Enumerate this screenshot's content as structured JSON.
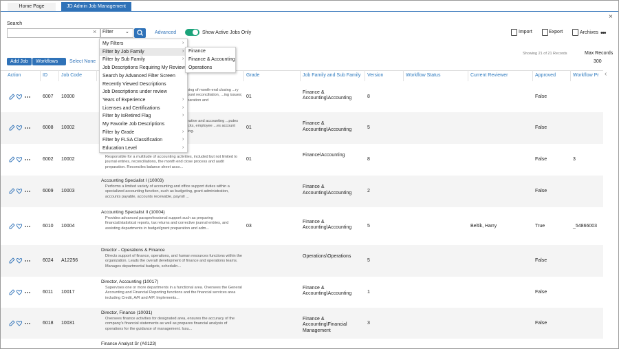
{
  "tabs": [
    "Home Page",
    "JD Admin Job Management"
  ],
  "search": {
    "label": "Search",
    "filter": "Filter",
    "advanced": "Advanced",
    "toggle_label": "Show Active Jobs Only"
  },
  "toolbar": {
    "import": "Import",
    "export": "Export",
    "archives": "Archives"
  },
  "actions": {
    "add_job": "Add Job",
    "workflows": "Workflows",
    "select_none": "Select None",
    "record_count": "Showing 21 of 21 Records",
    "max_records_label": "Max Records",
    "max_records_value": "300"
  },
  "table": {
    "columns": [
      "Action",
      "ID",
      "Job Code",
      "Grade",
      "Job Family and Sub Family",
      "Version",
      "Workflow Status",
      "Current Reviewer",
      "Approved",
      "Workflow Pr"
    ],
    "rows": [
      {
        "id": "6007",
        "code": "10000",
        "fragment": "...aping of month-end closing ...ry account reconciliation, ...ing issues; preparation and",
        "grade": "01",
        "family": "Finance & Accounting\\Accounting",
        "version": "8",
        "approved": "False"
      },
      {
        "id": "6008",
        "code": "10002",
        "fragment": "...strative and accounting ...putes checks, employee ...es account coding.",
        "grade": "01",
        "family": "Finance & Accounting\\Accounting",
        "version": "5",
        "approved": "False"
      },
      {
        "id": "6002",
        "code": "10002",
        "description": "Responsible for a multitude of accounting activities, included but not limited to journal entries, reconciliations, the month end close process and audit preparation.  Reconciles balance sheet acco...",
        "grade": "01",
        "family": "Finance\\Accounting",
        "version": "8",
        "approved": "False",
        "workflow": "3"
      },
      {
        "id": "6009",
        "code": "10003",
        "title": "Accounting Specialist I (10003)",
        "description": "Performs a limited variety of accounting and office support duties within a specialized accounting function, such as budgeting, grant administration, accounts payable, accounts receivable, payroll ...",
        "family": "Finance & Accounting\\Accounting",
        "version": "2",
        "approved": "False"
      },
      {
        "id": "6010",
        "code": "10004",
        "title": "Accounting Specialist II (10004)",
        "description": "Provides advanced paraprofessional support such as preparing financial/statistical reports, tax returns and corrective journal entries, and assisting departments in budget/grant preparation and adm...",
        "grade": "03",
        "family": "Finance & Accounting\\Accounting",
        "version": "5",
        "reviewer": "Beltik, Harry",
        "approved": "True",
        "workflow": "_54866003"
      },
      {
        "id": "6024",
        "code": "A12256",
        "title": "Director - Operations & Finance",
        "description": "Directs support of finance, operations, and human resources functions within the organization. Leads the overall development of finance and operations teams. Manages departmental budgets, schedulin...",
        "family": "Operations\\Operations",
        "version": "5",
        "approved": "False"
      },
      {
        "id": "6011",
        "code": "10017",
        "title": "Director, Accounting (10017)",
        "description": "Supervises one or more departments in a functional area. Oversees the General Accounting and Financial Reporting functions and the financial services area including Credit, A/R and A/P. Implements...",
        "family": "Finance & Accounting\\Accounting",
        "version": "1",
        "approved": "False"
      },
      {
        "id": "6018",
        "code": "10031",
        "title": "Director, Finance (10031)",
        "description": "Oversees finance activities for designated area, ensures the accuracy of the company's financial statements as well as prepares financial analysis of operations for the guidance of management. Issu...",
        "family": "Finance & Accounting\\Financial Management",
        "version": "3",
        "approved": "False"
      },
      {
        "title": "Finance Analyst Sr (A0123)"
      }
    ]
  },
  "filter_menu": {
    "items": [
      {
        "label": "My Filters",
        "has_submenu": true
      },
      {
        "label": "Filter by Job Family",
        "has_submenu": true
      },
      {
        "label": "Filter by Sub Family",
        "has_submenu": true
      },
      {
        "label": "Job Descriptions Requiring My Review",
        "has_submenu": false
      },
      {
        "label": "Search by Advanced Filter Screen",
        "has_submenu": false
      },
      {
        "label": "Recently Viewed Descriptions",
        "has_submenu": false
      },
      {
        "label": "Job Descriptions under review",
        "has_submenu": false
      },
      {
        "label": "Years of Experience",
        "has_submenu": true
      },
      {
        "label": "Licenses and Certifications",
        "has_submenu": true
      },
      {
        "label": "Filter by IsRetired Flag",
        "has_submenu": true
      },
      {
        "label": "My Favorite Job Descriptions",
        "has_submenu": false
      },
      {
        "label": "Filter by Grade",
        "has_submenu": true
      },
      {
        "label": "Filter by FLSA Classification",
        "has_submenu": true
      },
      {
        "label": "Education Level",
        "has_submenu": true
      }
    ],
    "submenu": [
      "Finance",
      "Finance & Accounting",
      "Operations"
    ]
  }
}
